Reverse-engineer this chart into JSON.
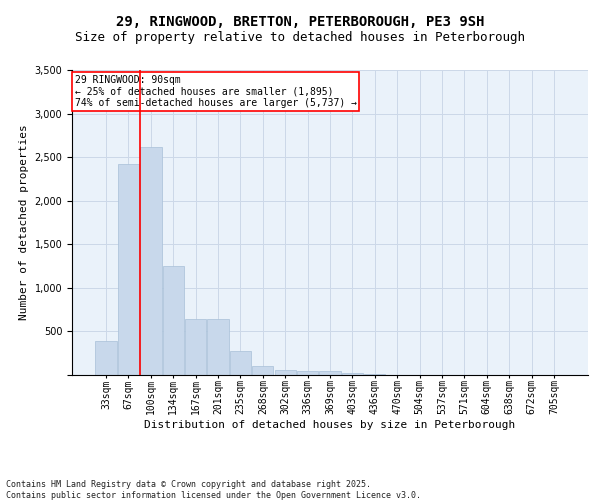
{
  "title1": "29, RINGWOOD, BRETTON, PETERBOROUGH, PE3 9SH",
  "title2": "Size of property relative to detached houses in Peterborough",
  "xlabel": "Distribution of detached houses by size in Peterborough",
  "ylabel": "Number of detached properties",
  "categories": [
    "33sqm",
    "67sqm",
    "100sqm",
    "134sqm",
    "167sqm",
    "201sqm",
    "235sqm",
    "268sqm",
    "302sqm",
    "336sqm",
    "369sqm",
    "403sqm",
    "436sqm",
    "470sqm",
    "504sqm",
    "537sqm",
    "571sqm",
    "604sqm",
    "638sqm",
    "672sqm",
    "705sqm"
  ],
  "values": [
    390,
    2420,
    2620,
    1250,
    640,
    640,
    270,
    100,
    55,
    50,
    45,
    25,
    10,
    5,
    3,
    2,
    1,
    1,
    0,
    0,
    0
  ],
  "bar_color": "#c8d8eb",
  "bar_edge_color": "#a8c0d8",
  "vline_x": 1.5,
  "vline_color": "red",
  "annotation_text": "29 RINGWOOD: 90sqm\n← 25% of detached houses are smaller (1,895)\n74% of semi-detached houses are larger (5,737) →",
  "annotation_box_color": "white",
  "annotation_box_edge": "red",
  "ylim": [
    0,
    3500
  ],
  "yticks": [
    0,
    500,
    1000,
    1500,
    2000,
    2500,
    3000,
    3500
  ],
  "grid_color": "#ccd8e8",
  "bg_color": "#eaf2fa",
  "footer": "Contains HM Land Registry data © Crown copyright and database right 2025.\nContains public sector information licensed under the Open Government Licence v3.0.",
  "title1_fontsize": 10,
  "title2_fontsize": 9,
  "xlabel_fontsize": 8,
  "ylabel_fontsize": 8,
  "annot_fontsize": 7,
  "tick_fontsize": 7,
  "ytick_fontsize": 7,
  "footer_fontsize": 6
}
